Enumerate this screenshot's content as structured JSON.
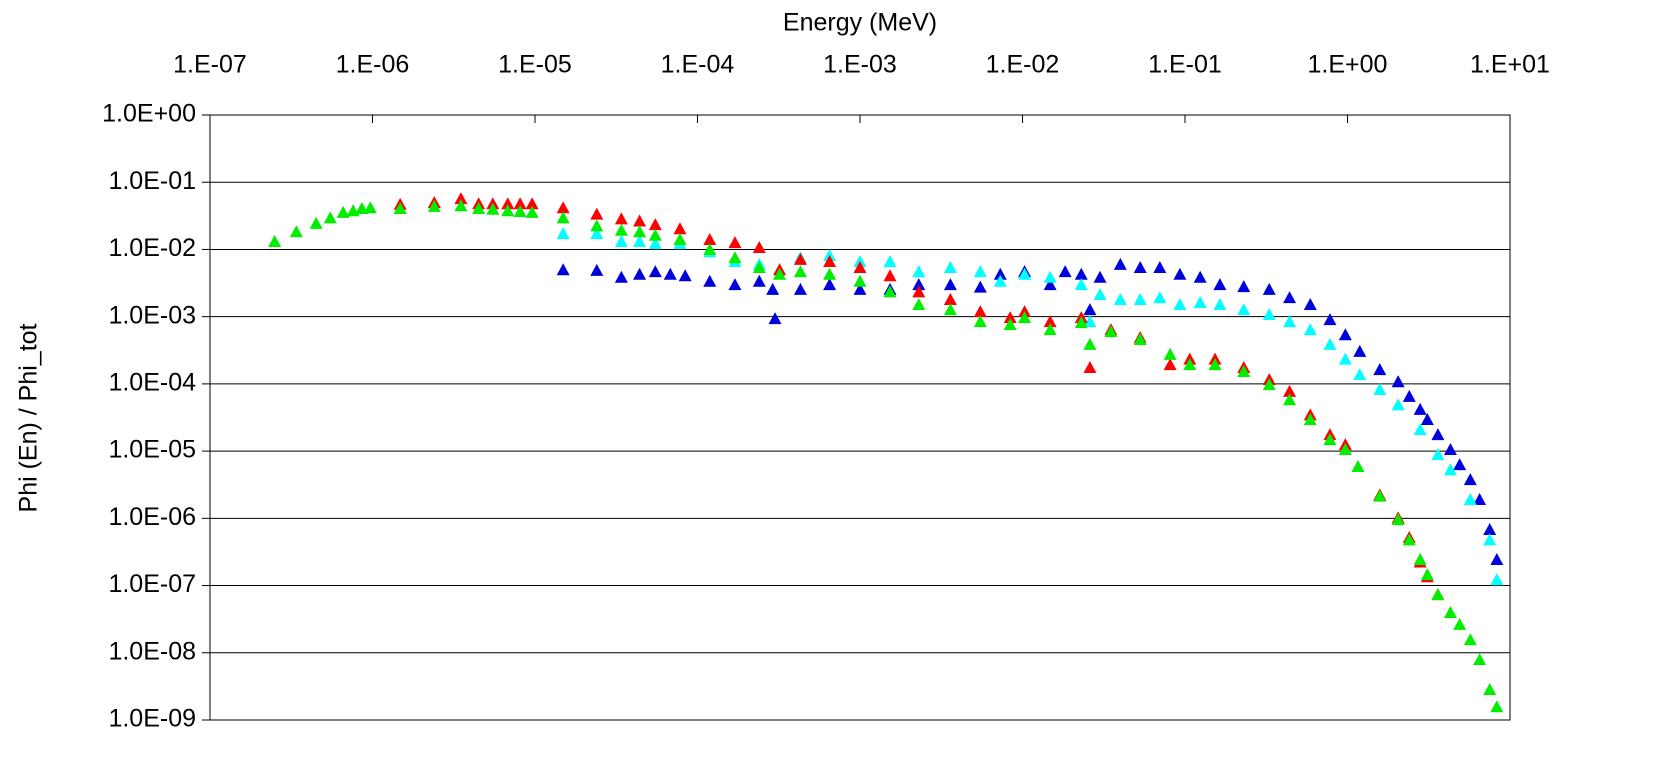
{
  "chart_data": {
    "type": "scatter",
    "x_label": "Energy (MeV)",
    "y_label": "Phi (En) / Phi_tot",
    "xscale": "log",
    "yscale": "log",
    "grid": true,
    "marker": "triangle",
    "xlim": [
      1e-07,
      10
    ],
    "xticks": [
      {
        "value": 1e-07,
        "label": "1.E-07"
      },
      {
        "value": 1e-06,
        "label": "1.E-06"
      },
      {
        "value": 1e-05,
        "label": "1.E-05"
      },
      {
        "value": 0.0001,
        "label": "1.E-04"
      },
      {
        "value": 0.001,
        "label": "1.E-03"
      },
      {
        "value": 0.01,
        "label": "1.E-02"
      },
      {
        "value": 0.1,
        "label": "1.E-01"
      },
      {
        "value": 1,
        "label": "1.E+00"
      },
      {
        "value": 10,
        "label": "1.E+01"
      }
    ],
    "ylim": [
      1e-09,
      1
    ],
    "yticks": [
      {
        "value": 1,
        "label": "1.0E+00"
      },
      {
        "value": 0.1,
        "label": "1.0E-01"
      },
      {
        "value": 0.01,
        "label": "1.0E-02"
      },
      {
        "value": 0.001,
        "label": "1.0E-03"
      },
      {
        "value": 0.0001,
        "label": "1.0E-04"
      },
      {
        "value": 1e-05,
        "label": "1.0E-05"
      },
      {
        "value": 1e-06,
        "label": "1.0E-06"
      },
      {
        "value": 1e-07,
        "label": "1.0E-07"
      },
      {
        "value": 1e-08,
        "label": "1.0E-08"
      },
      {
        "value": 1e-09,
        "label": "1.0E-09"
      }
    ],
    "series": [
      {
        "color": "#0000dd",
        "x": [
          1.49e-05,
          2.4e-05,
          3.4e-05,
          4.4e-05,
          5.5e-05,
          6.8e-05,
          8.4e-05,
          0.000119,
          0.00017,
          0.00024,
          0.00029,
          0.0003,
          0.00043,
          0.00065,
          0.001,
          0.00153,
          0.0023,
          0.0036,
          0.0055,
          0.0073,
          0.0103,
          0.0148,
          0.0183,
          0.023,
          0.026,
          0.03,
          0.04,
          0.053,
          0.07,
          0.093,
          0.124,
          0.164,
          0.23,
          0.33,
          0.44,
          0.59,
          0.78,
          0.97,
          1.19,
          1.58,
          2.05,
          2.4,
          2.8,
          3.1,
          3.6,
          4.3,
          4.9,
          5.7,
          6.5,
          7.5,
          8.3
        ],
        "values": [
          0.0049,
          0.0048,
          0.0038,
          0.0042,
          0.0046,
          0.0042,
          0.004,
          0.0033,
          0.00295,
          0.0033,
          0.0025,
          0.00092,
          0.0025,
          0.00295,
          0.0025,
          0.0025,
          0.00295,
          0.00295,
          0.0027,
          0.0042,
          0.0046,
          0.00295,
          0.0046,
          0.0042,
          0.00125,
          0.0038,
          0.0059,
          0.0053,
          0.0053,
          0.0042,
          0.0038,
          0.00295,
          0.00275,
          0.0025,
          0.00189,
          0.00149,
          0.00089,
          0.00053,
          0.0003,
          0.00016,
          0.000106,
          6.4e-05,
          4.1e-05,
          2.9e-05,
          1.73e-05,
          1.04e-05,
          6.2e-06,
          3.7e-06,
          1.87e-06,
          6.7e-07,
          2.4e-07
        ]
      },
      {
        "color": "#00ffff",
        "x": [
          1.49e-05,
          2.4e-05,
          3.4e-05,
          4.4e-05,
          5.5e-05,
          7.8e-05,
          0.000119,
          0.00017,
          0.00024,
          0.00032,
          0.00043,
          0.00065,
          0.001,
          0.00153,
          0.0023,
          0.0036,
          0.0055,
          0.0073,
          0.0103,
          0.0148,
          0.023,
          0.026,
          0.03,
          0.04,
          0.053,
          0.07,
          0.093,
          0.124,
          0.164,
          0.23,
          0.33,
          0.44,
          0.59,
          0.78,
          0.97,
          1.19,
          1.58,
          2.05,
          2.8,
          3.6,
          4.3,
          5.7,
          7.5,
          8.3
        ],
        "values": [
          0.017,
          0.017,
          0.0129,
          0.0129,
          0.012,
          0.012,
          0.0091,
          0.0065,
          0.0059,
          0.0049,
          0.0074,
          0.008,
          0.0065,
          0.0065,
          0.0046,
          0.0053,
          0.0046,
          0.0033,
          0.0042,
          0.0038,
          0.00295,
          0.00083,
          0.0021,
          0.00177,
          0.00177,
          0.00189,
          0.00149,
          0.0016,
          0.00149,
          0.00125,
          0.00106,
          0.00083,
          0.00063,
          0.00038,
          0.00023,
          0.000135,
          8.1e-05,
          4.8e-05,
          2.05e-05,
          8.7e-06,
          5.2e-06,
          1.87e-06,
          4.7e-07,
          1.2e-07
        ]
      },
      {
        "color": "#ff0000",
        "x": [
          1.48e-06,
          2.4e-06,
          3.5e-06,
          4.5e-06,
          5.5e-06,
          6.8e-06,
          8.1e-06,
          9.6e-06,
          1.49e-05,
          2.4e-05,
          3.4e-05,
          4.4e-05,
          5.5e-05,
          7.8e-05,
          0.000119,
          0.00017,
          0.00024,
          0.00032,
          0.00043,
          0.00065,
          0.001,
          0.00153,
          0.0023,
          0.0036,
          0.0055,
          0.0084,
          0.0103,
          0.0148,
          0.023,
          0.026,
          0.035,
          0.053,
          0.081,
          0.107,
          0.153,
          0.23,
          0.33,
          0.44,
          0.59,
          0.78,
          0.97,
          1.58,
          2.05,
          2.4,
          2.8,
          3.1,
          3.6
        ],
        "values": [
          0.046,
          0.049,
          0.056,
          0.047,
          0.047,
          0.047,
          0.047,
          0.047,
          0.041,
          0.033,
          0.028,
          0.026,
          0.023,
          0.02,
          0.0138,
          0.0124,
          0.0105,
          0.0049,
          0.007,
          0.0065,
          0.0053,
          0.004,
          0.0023,
          0.00177,
          0.00117,
          0.00095,
          0.00117,
          0.00083,
          0.00095,
          0.000172,
          0.00063,
          0.00048,
          0.00019,
          0.00023,
          0.00023,
          0.000172,
          0.000114,
          7.6e-05,
          3.4e-05,
          1.73e-05,
          1.23e-05,
          2.2e-06,
          1e-06,
          5.1e-07,
          2.2e-07,
          1.33e-07,
          7.2e-08
        ]
      },
      {
        "color": "#00ee00",
        "x": [
          2.5e-07,
          3.4e-07,
          4.5e-07,
          5.5e-07,
          6.6e-07,
          7.6e-07,
          8.6e-07,
          9.7e-07,
          1.48e-06,
          2.4e-06,
          3.5e-06,
          4.5e-06,
          5.5e-06,
          6.8e-06,
          8.1e-06,
          9.6e-06,
          1.49e-05,
          2.4e-05,
          3.4e-05,
          4.4e-05,
          5.5e-05,
          7.8e-05,
          0.000119,
          0.00017,
          0.00024,
          0.00032,
          0.00043,
          0.00065,
          0.001,
          0.00153,
          0.0023,
          0.0036,
          0.0055,
          0.0084,
          0.0103,
          0.0148,
          0.023,
          0.026,
          0.035,
          0.053,
          0.081,
          0.107,
          0.153,
          0.23,
          0.33,
          0.44,
          0.59,
          0.78,
          0.97,
          1.16,
          1.58,
          2.05,
          2.4,
          2.8,
          3.1,
          3.6,
          4.3,
          4.9,
          5.7,
          6.5,
          7.5,
          8.3
        ],
        "values": [
          0.0129,
          0.018,
          0.024,
          0.029,
          0.035,
          0.037,
          0.04,
          0.041,
          0.04,
          0.043,
          0.044,
          0.04,
          0.039,
          0.037,
          0.036,
          0.035,
          0.029,
          0.022,
          0.019,
          0.018,
          0.016,
          0.0138,
          0.0098,
          0.0074,
          0.0053,
          0.0042,
          0.0046,
          0.0042,
          0.0033,
          0.0023,
          0.00149,
          0.00125,
          0.00083,
          0.00075,
          0.00095,
          0.00063,
          0.0008,
          0.00038,
          0.00059,
          0.00045,
          0.00027,
          0.00019,
          0.00019,
          0.00015,
          9.6e-05,
          5.7e-05,
          2.9e-05,
          1.46e-05,
          1.04e-05,
          5.8e-06,
          2.1e-06,
          9.4e-07,
          4.7e-07,
          2.4e-07,
          1.43e-07,
          7.2e-08,
          3.9e-08,
          2.6e-08,
          1.54e-08,
          7.8e-09,
          2.8e-09,
          1.55e-09
        ]
      }
    ]
  }
}
